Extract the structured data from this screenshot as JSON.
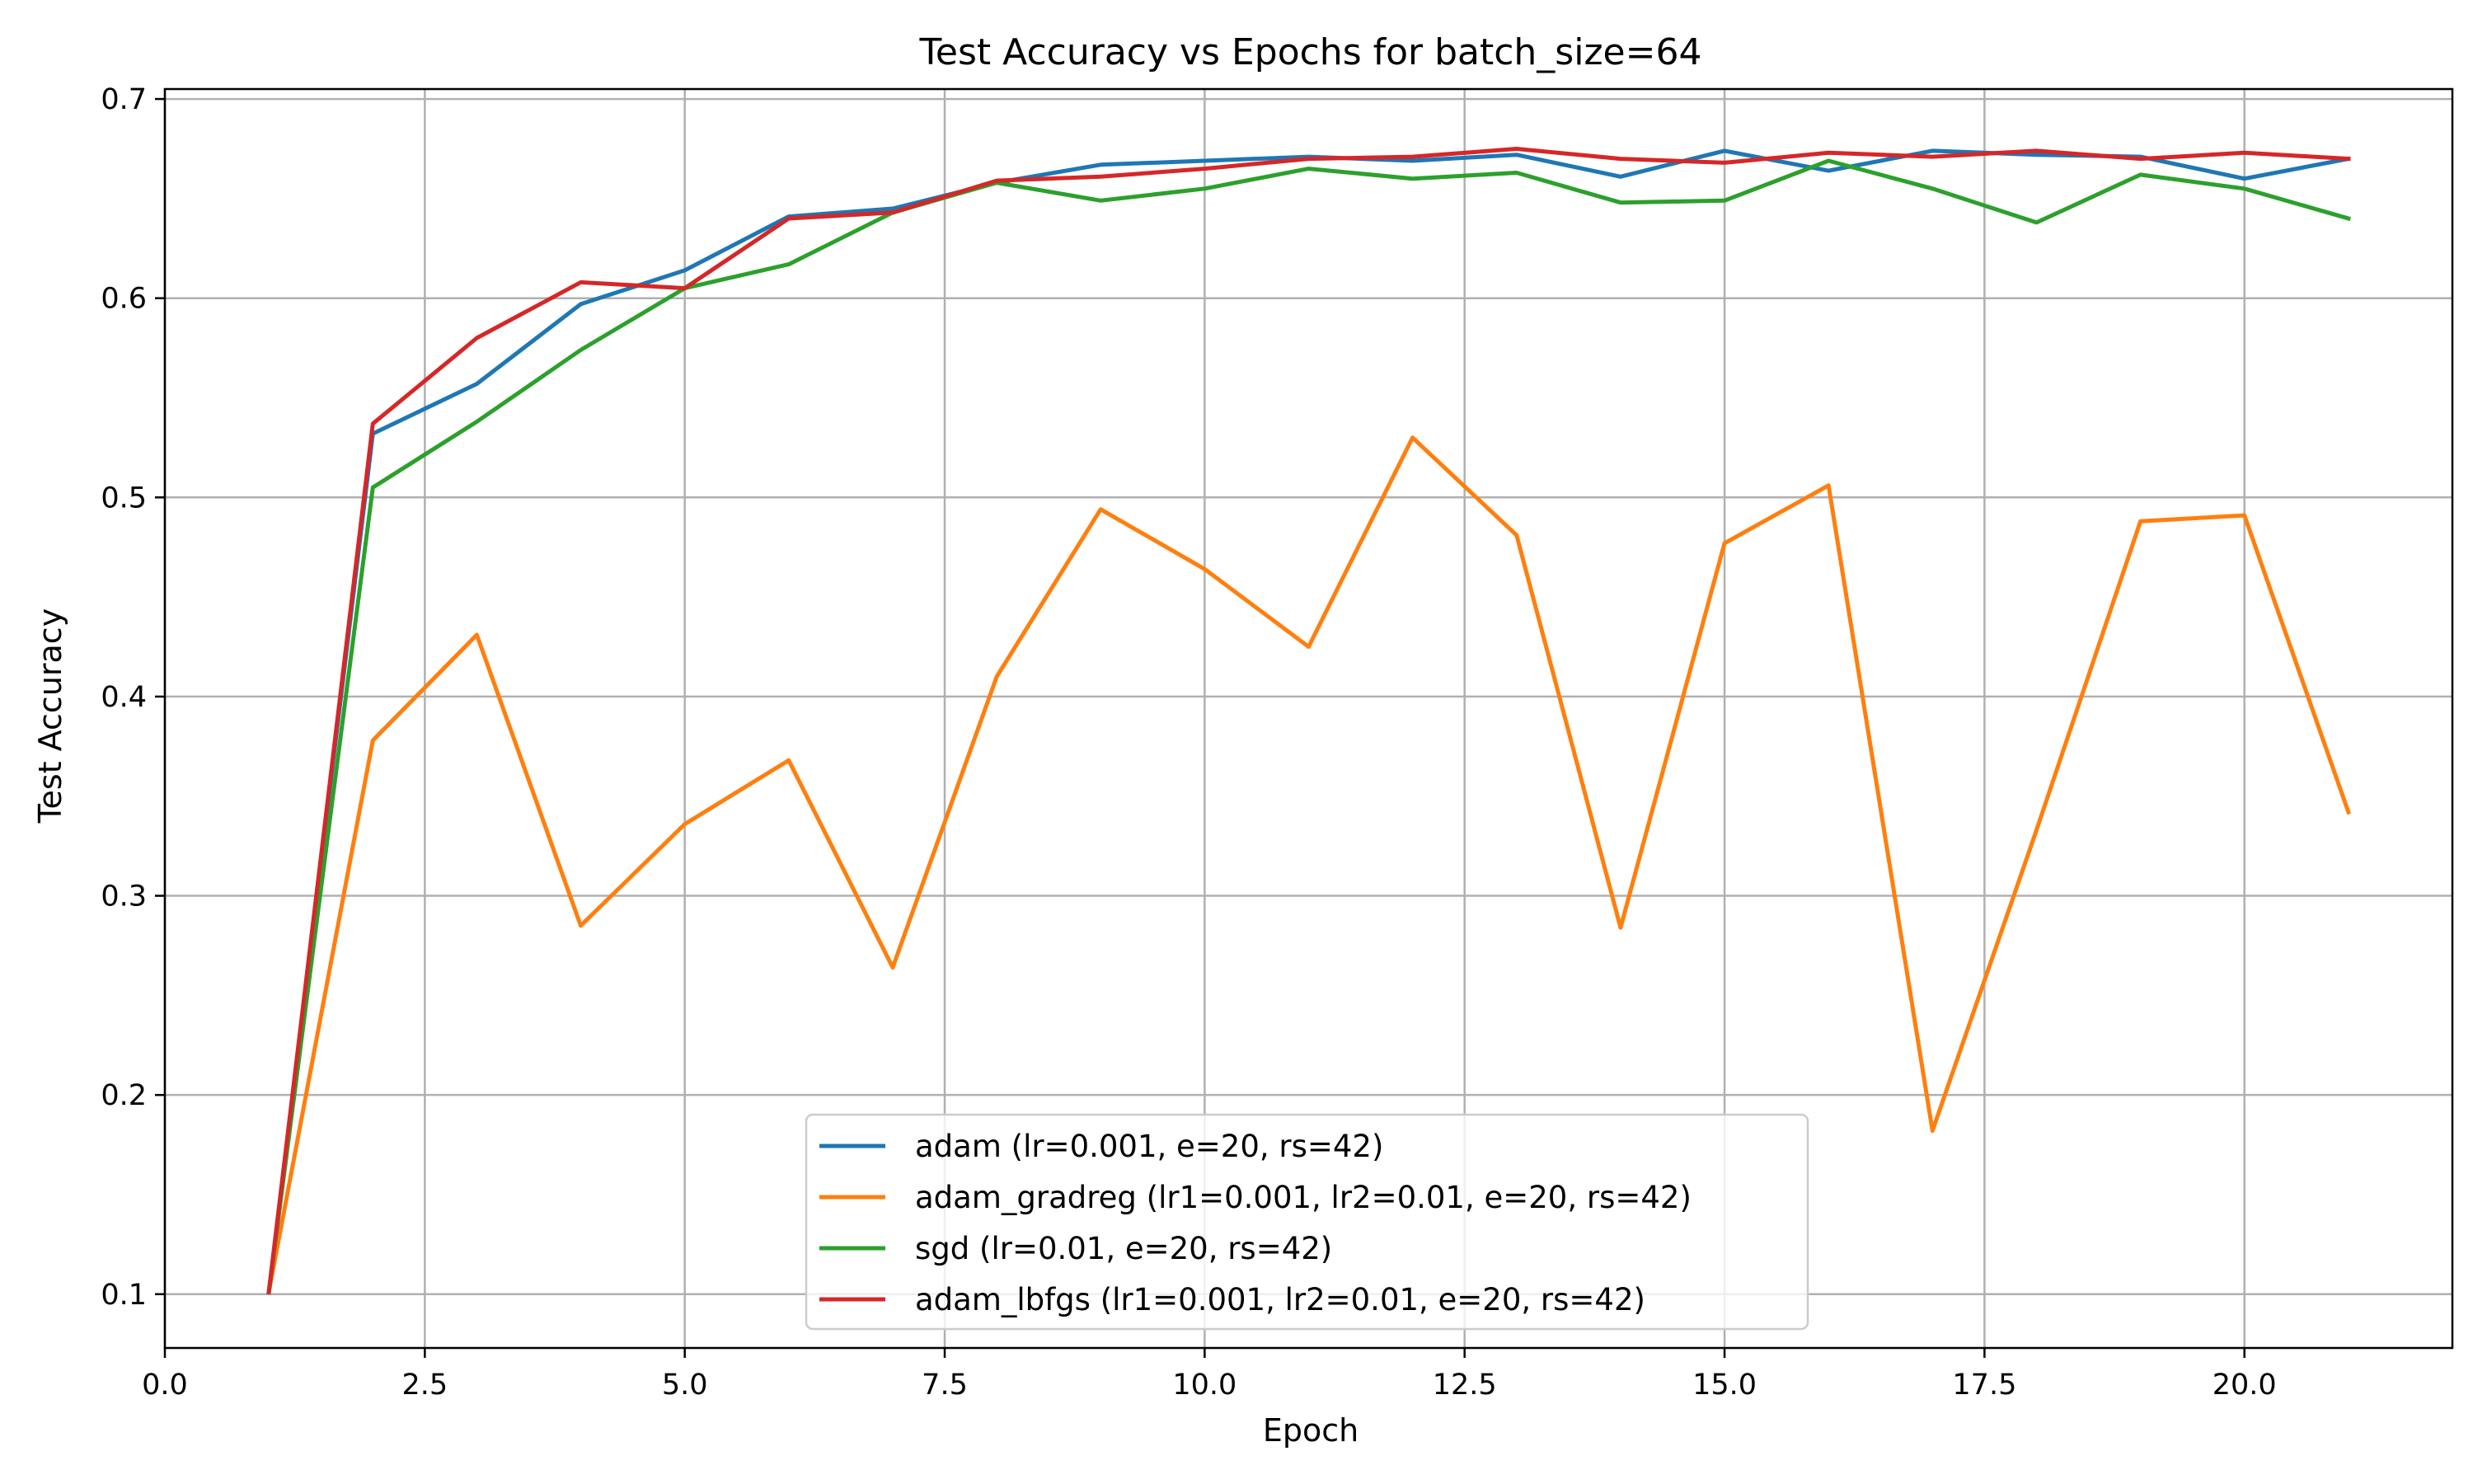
{
  "chart_data": {
    "type": "line",
    "title": "Test Accuracy vs Epochs for batch_size=64",
    "xlabel": "Epoch",
    "ylabel": "Test Accuracy",
    "xlim": [
      0,
      22.0
    ],
    "ylim": [
      0.073,
      0.705
    ],
    "xticks": [
      0,
      2.5,
      5,
      7.5,
      10,
      12.5,
      15,
      17.5,
      20
    ],
    "xtick_labels": [
      "0.0",
      "2.5",
      "5.0",
      "7.5",
      "10.0",
      "12.5",
      "15.0",
      "17.5",
      "20.0"
    ],
    "yticks": [
      0.1,
      0.2,
      0.3,
      0.4,
      0.5,
      0.6,
      0.7
    ],
    "ytick_labels": [
      "0.1",
      "0.2",
      "0.3",
      "0.4",
      "0.5",
      "0.6",
      "0.7"
    ],
    "grid": true,
    "legend_position": "bottom-center",
    "x": [
      1,
      2,
      3,
      4,
      5,
      6,
      7,
      8,
      9,
      10,
      11,
      12,
      13,
      14,
      15,
      16,
      17,
      18,
      19,
      20,
      21
    ],
    "series": [
      {
        "name": "adam (lr=0.001, e=20, rs=42)",
        "color": "#1f77b4",
        "values": [
          0.101,
          0.532,
          0.557,
          0.597,
          0.614,
          0.641,
          0.645,
          0.658,
          0.667,
          0.669,
          0.671,
          0.669,
          0.672,
          0.661,
          0.674,
          0.664,
          0.674,
          0.672,
          0.671,
          0.66,
          0.67
        ]
      },
      {
        "name": "adam_gradreg (lr1=0.001, lr2=0.01, e=20, rs=42)",
        "color": "#ff7f0e",
        "values": [
          0.101,
          0.378,
          0.431,
          0.285,
          0.336,
          0.368,
          0.264,
          0.41,
          0.494,
          0.464,
          0.425,
          0.53,
          0.481,
          0.284,
          0.477,
          0.506,
          0.182,
          0.333,
          0.488,
          0.491,
          0.342
        ]
      },
      {
        "name": "sgd (lr=0.01, e=20, rs=42)",
        "color": "#2ca02c",
        "values": [
          0.101,
          0.505,
          0.538,
          0.574,
          0.605,
          0.617,
          0.643,
          0.658,
          0.649,
          0.655,
          0.665,
          0.66,
          0.663,
          0.648,
          0.649,
          0.669,
          0.655,
          0.638,
          0.662,
          0.655,
          0.64
        ]
      },
      {
        "name": "adam_lbfgs (lr1=0.001, lr2=0.01, e=20, rs=42)",
        "color": "#d62728",
        "values": [
          0.101,
          0.537,
          0.58,
          0.608,
          0.605,
          0.64,
          0.643,
          0.659,
          0.661,
          0.665,
          0.67,
          0.671,
          0.675,
          0.67,
          0.668,
          0.673,
          0.671,
          0.674,
          0.67,
          0.673,
          0.67
        ]
      }
    ]
  }
}
